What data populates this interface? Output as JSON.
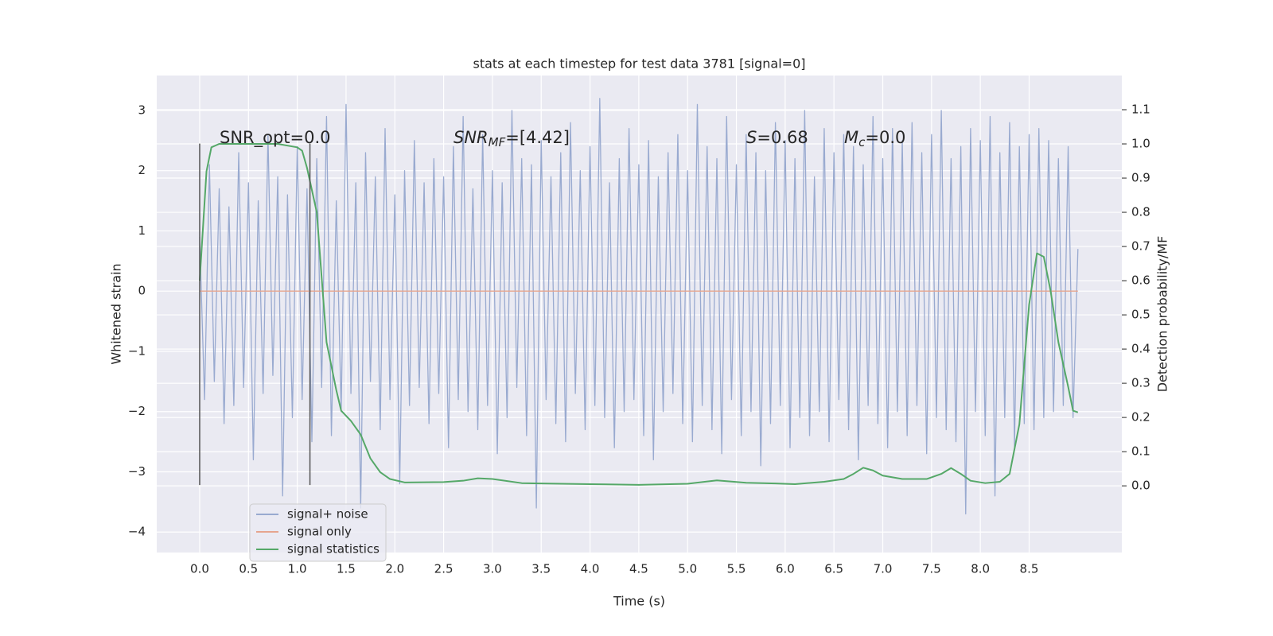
{
  "chart_data": {
    "type": "line",
    "title": "stats at each timestep for test data 3781 [signal=0]",
    "xlabel": "Time (s)",
    "ylabel": "Whitened strain",
    "y2label": "Detection probability/MF",
    "xlim": [
      -0.44,
      9.45
    ],
    "ylim": [
      -4.34,
      3.58
    ],
    "y2lim": [
      -0.195,
      1.2
    ],
    "xticks": [
      {
        "value": 0,
        "label": "0.0"
      },
      0.5,
      {
        "value": 1,
        "label": "1.0"
      },
      1.5,
      {
        "value": 2,
        "label": "2.0"
      },
      2.5,
      {
        "value": 3,
        "label": "3.0"
      },
      3.5,
      {
        "value": 4,
        "label": "4.0"
      },
      4.5,
      {
        "value": 5,
        "label": "5.0"
      },
      5.5,
      {
        "value": 6,
        "label": "6.0"
      },
      6.5,
      {
        "value": 7,
        "label": "7.0"
      },
      7.5,
      {
        "value": 8,
        "label": "8.0"
      },
      8.5
    ],
    "yticks": [
      {
        "value": -4,
        "label": "−4"
      },
      {
        "value": -3,
        "label": "−3"
      },
      {
        "value": -2,
        "label": "−2"
      },
      {
        "value": -1,
        "label": "−1"
      },
      0,
      1,
      2,
      3
    ],
    "y2ticks": [
      {
        "value": 0,
        "label": "0.0"
      },
      0.1,
      0.2,
      0.3,
      0.4,
      0.5,
      0.6,
      0.7,
      0.8,
      0.9,
      {
        "value": 1,
        "label": "1.0"
      },
      1.1
    ],
    "grid": true,
    "legend": "lower left",
    "series": [
      {
        "name": "signal+ noise",
        "color": "#99aad0",
        "x": [
          0,
          0.05,
          0.1,
          0.15,
          0.2,
          0.25,
          0.3,
          0.35,
          0.4,
          0.45,
          0.5,
          0.55,
          0.6,
          0.65,
          0.7,
          0.75,
          0.8,
          0.85,
          0.9,
          0.95,
          1,
          1.05,
          1.1,
          1.15,
          1.2,
          1.25,
          1.3,
          1.35,
          1.4,
          1.45,
          1.5,
          1.55,
          1.6,
          1.65,
          1.7,
          1.75,
          1.8,
          1.85,
          1.9,
          1.95,
          2,
          2.05,
          2.1,
          2.15,
          2.2,
          2.25,
          2.3,
          2.35,
          2.4,
          2.45,
          2.5,
          2.55,
          2.6,
          2.65,
          2.7,
          2.75,
          2.8,
          2.85,
          2.9,
          2.95,
          3,
          3.05,
          3.1,
          3.15,
          3.2,
          3.25,
          3.3,
          3.35,
          3.4,
          3.45,
          3.5,
          3.55,
          3.6,
          3.65,
          3.7,
          3.75,
          3.8,
          3.85,
          3.9,
          3.95,
          4,
          4.05,
          4.1,
          4.15,
          4.2,
          4.25,
          4.3,
          4.35,
          4.4,
          4.45,
          4.5,
          4.55,
          4.6,
          4.65,
          4.7,
          4.75,
          4.8,
          4.85,
          4.9,
          4.95,
          5,
          5.05,
          5.1,
          5.15,
          5.2,
          5.25,
          5.3,
          5.35,
          5.4,
          5.45,
          5.5,
          5.55,
          5.6,
          5.65,
          5.7,
          5.75,
          5.8,
          5.85,
          5.9,
          5.95,
          6,
          6.05,
          6.1,
          6.15,
          6.2,
          6.25,
          6.3,
          6.35,
          6.4,
          6.45,
          6.5,
          6.55,
          6.6,
          6.65,
          6.7,
          6.75,
          6.8,
          6.85,
          6.9,
          6.95,
          7,
          7.05,
          7.1,
          7.15,
          7.2,
          7.25,
          7.3,
          7.35,
          7.4,
          7.45,
          7.5,
          7.55,
          7.6,
          7.65,
          7.7,
          7.75,
          7.8,
          7.85,
          7.9,
          7.95,
          8,
          8.05,
          8.1,
          8.15,
          8.2,
          8.25,
          8.3,
          8.35,
          8.4,
          8.45,
          8.5,
          8.55,
          8.6,
          8.65,
          8.7,
          8.75,
          8.8,
          8.85,
          8.9,
          8.95,
          9
        ],
        "values": [
          0.9,
          -1.8,
          2.1,
          -1.5,
          1.7,
          -2.2,
          1.4,
          -1.9,
          2.3,
          -1.6,
          1.8,
          -2.8,
          1.5,
          -1.7,
          2.6,
          -1.4,
          1.9,
          -3.4,
          1.6,
          -2.1,
          2.4,
          -1.8,
          1.7,
          -2.5,
          2.2,
          -1.6,
          2.9,
          -2.4,
          1.5,
          -2.0,
          3.1,
          -1.7,
          1.8,
          -3.6,
          2.3,
          -1.5,
          1.9,
          -2.3,
          2.7,
          -1.8,
          1.6,
          -3.2,
          2.0,
          -1.9,
          2.5,
          -1.6,
          1.8,
          -2.2,
          2.2,
          -1.7,
          1.9,
          -2.6,
          2.4,
          -1.8,
          2.9,
          -2.0,
          1.7,
          -2.3,
          2.6,
          -1.9,
          2.0,
          -2.7,
          1.8,
          -2.1,
          3.0,
          -1.6,
          2.2,
          -2.4,
          2.1,
          -3.6,
          2.5,
          -1.8,
          1.9,
          -2.2,
          2.3,
          -2.5,
          2.8,
          -1.7,
          2.0,
          -2.3,
          2.4,
          -1.9,
          3.2,
          -2.1,
          1.8,
          -2.6,
          2.2,
          -2.0,
          2.7,
          -1.8,
          2.1,
          -2.4,
          2.5,
          -2.8,
          1.9,
          -2.0,
          2.3,
          -1.7,
          2.6,
          -2.2,
          2.0,
          -2.5,
          3.1,
          -1.9,
          2.4,
          -2.3,
          2.2,
          -2.7,
          2.9,
          -1.8,
          2.1,
          -2.4,
          2.6,
          -2.0,
          2.3,
          -2.9,
          2.0,
          -2.2,
          2.8,
          -1.9,
          2.5,
          -2.6,
          2.2,
          -2.1,
          3.0,
          -2.4,
          1.9,
          -2.0,
          2.7,
          -2.5,
          2.3,
          -1.8,
          2.6,
          -2.3,
          2.4,
          -2.8,
          2.1,
          -1.9,
          2.9,
          -2.2,
          2.2,
          -2.6,
          2.7,
          -2.0,
          2.5,
          -2.4,
          2.8,
          -1.9,
          2.3,
          -2.7,
          2.6,
          -2.1,
          3.0,
          -2.3,
          2.2,
          -2.5,
          2.4,
          -3.7,
          2.7,
          -2.0,
          2.5,
          -2.4,
          2.9,
          -3.4,
          2.3,
          -2.1,
          2.8,
          -2.6,
          2.4,
          -2.2,
          2.6,
          -2.3,
          2.7,
          -2.1,
          2.5,
          -2.0,
          2.2,
          -1.9,
          2.4,
          -2.1,
          0.7
        ]
      },
      {
        "name": "signal only",
        "color": "#e6a58f",
        "x": [
          0,
          9
        ],
        "values": [
          0,
          0
        ]
      },
      {
        "name": "signal statistics",
        "color": "#55a868",
        "axis": "y2",
        "x": [
          0,
          0.07,
          0.12,
          0.2,
          0.5,
          0.8,
          1.0,
          1.05,
          1.1,
          1.2,
          1.3,
          1.4,
          1.45,
          1.55,
          1.65,
          1.75,
          1.85,
          1.95,
          2.1,
          2.5,
          2.7,
          2.85,
          3.0,
          3.3,
          3.5,
          4.0,
          4.5,
          5.0,
          5.3,
          5.6,
          5.9,
          6.1,
          6.4,
          6.6,
          6.7,
          6.8,
          6.9,
          7.0,
          7.2,
          7.45,
          7.6,
          7.7,
          7.8,
          7.9,
          8.05,
          8.2,
          8.3,
          8.4,
          8.5,
          8.58,
          8.65,
          8.72,
          8.8,
          8.9,
          8.95,
          9.0
        ],
        "values": [
          0.6,
          0.92,
          0.99,
          1.0,
          1.0,
          1.0,
          0.99,
          0.98,
          0.93,
          0.8,
          0.42,
          0.28,
          0.22,
          0.19,
          0.15,
          0.08,
          0.04,
          0.02,
          0.01,
          0.011,
          0.015,
          0.022,
          0.02,
          0.008,
          0.007,
          0.005,
          0.003,
          0.006,
          0.016,
          0.009,
          0.007,
          0.005,
          0.012,
          0.02,
          0.035,
          0.053,
          0.045,
          0.03,
          0.02,
          0.02,
          0.035,
          0.052,
          0.035,
          0.015,
          0.008,
          0.012,
          0.035,
          0.18,
          0.53,
          0.68,
          0.67,
          0.57,
          0.42,
          0.29,
          0.22,
          0.215
        ]
      }
    ],
    "vlines": {
      "x": [
        0,
        1.13
      ],
      "ymin": -3.22,
      "ymax": 2.45,
      "color": "#555555"
    },
    "annotations": [
      {
        "parts": [
          {
            "text": "SNR_opt=0.0"
          }
        ]
      },
      {
        "parts": [
          {
            "text": "SNR",
            "italic": true
          },
          {
            "text": "MF",
            "italic": true,
            "sub": true
          },
          {
            "text": "=[4.42]"
          }
        ]
      },
      {
        "parts": [
          {
            "text": "S",
            "italic": true
          },
          {
            "text": "=0.68"
          }
        ]
      },
      {
        "parts": [
          {
            "text": "M",
            "italic": true
          },
          {
            "text": "c",
            "italic": true,
            "sub": true
          },
          {
            "text": "=0.0"
          }
        ]
      }
    ]
  }
}
